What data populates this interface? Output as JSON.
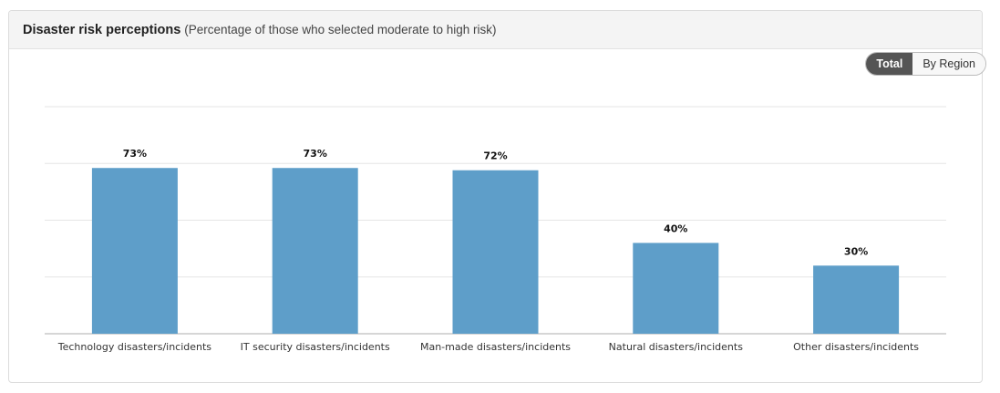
{
  "panel": {
    "title": "Disaster risk perceptions",
    "subtitle": "(Percentage of those who selected moderate to high risk)"
  },
  "toggle": {
    "total_label": "Total",
    "region_label": "By Region",
    "selected": "Total"
  },
  "colors": {
    "bar": "#5e9ec9",
    "grid": "#e6e6e6",
    "axis": "#c8c8c8"
  },
  "chart_data": {
    "type": "bar",
    "categories": [
      "Technology disasters/incidents",
      "IT security disasters/incidents",
      "Man-made disasters/incidents",
      "Natural disasters/incidents",
      "Other disasters/incidents"
    ],
    "values": [
      73,
      73,
      72,
      40,
      30
    ],
    "value_labels": [
      "73%",
      "73%",
      "72%",
      "40%",
      "30%"
    ],
    "ylim": [
      0,
      100
    ],
    "grid": true
  }
}
